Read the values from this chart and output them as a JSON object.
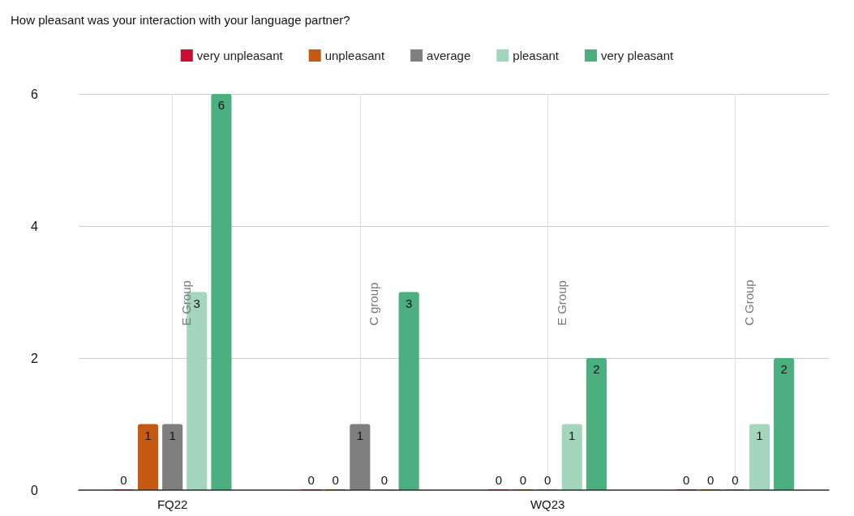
{
  "chart_data": {
    "type": "bar",
    "title": "How pleasant was your interaction with your language partner?",
    "categories": [
      "FQ22",
      null,
      "WQ23",
      null
    ],
    "series": [
      {
        "name": "very unpleasant",
        "color": "#c8102e",
        "values": [
          0,
          0,
          0,
          0
        ]
      },
      {
        "name": "unpleasant",
        "color": "#c65911",
        "values": [
          1,
          0,
          0,
          0
        ]
      },
      {
        "name": "average",
        "color": "#7f7f7f",
        "values": [
          1,
          1,
          0,
          0
        ]
      },
      {
        "name": "pleasant",
        "color": "#a3d6bd",
        "values": [
          3,
          0,
          1,
          1
        ]
      },
      {
        "name": "very pleasant",
        "color": "#4caf80",
        "values": [
          6,
          3,
          2,
          2
        ]
      }
    ],
    "ylim": [
      0,
      6
    ],
    "yticks": [
      0,
      2,
      4,
      6
    ],
    "grid": true,
    "legend": "top",
    "data_labels": true,
    "annotations": [
      "E Group",
      "C group",
      "E Group",
      "C Group"
    ]
  }
}
